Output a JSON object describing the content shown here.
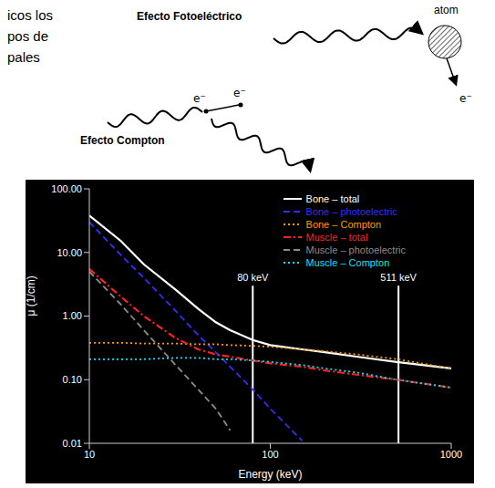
{
  "slide_text": [
    "icos los",
    "pos de",
    "pales"
  ],
  "diagram": {
    "photoelectric": {
      "title": "Efecto Fotoeléctrico",
      "atom": "atom",
      "electron": "e⁻"
    },
    "compton": {
      "title": "Efecto Compton",
      "electrons": [
        "e⁻",
        "e⁻"
      ]
    }
  },
  "chart_data": {
    "type": "line",
    "log": true,
    "grid": false,
    "legend": "top-right",
    "x_label": "Energy (keV)",
    "y_label": "μ (1/cm)",
    "xlim": [
      10,
      1000
    ],
    "xticks": [
      10,
      100,
      1000
    ],
    "ylim": [
      0.01,
      100
    ],
    "yticks": [
      0.01,
      {
        "value": 0.1,
        "label": "0.10"
      },
      {
        "value": 1,
        "label": "1.00"
      },
      {
        "value": 10,
        "label": "10.00"
      },
      {
        "value": 100,
        "label": "100.00"
      }
    ],
    "x": [
      10,
      15,
      20,
      30,
      40,
      50,
      60,
      80,
      100,
      150,
      200,
      300,
      500,
      1000
    ],
    "series": [
      {
        "name": "Bone – total",
        "color": "#ffffff",
        "line_style": "solid",
        "values": [
          38,
          15,
          6.5,
          2.6,
          1.3,
          0.8,
          0.6,
          0.42,
          0.35,
          0.3,
          0.27,
          0.23,
          0.19,
          0.15
        ]
      },
      {
        "name": "Bone – photoelectric",
        "color": "#2f2fff",
        "line_style": "dashed",
        "values": [
          30,
          9,
          4,
          1.2,
          0.5,
          0.27,
          0.16,
          0.07,
          0.035,
          0.011,
          null,
          null,
          null,
          null
        ]
      },
      {
        "name": "Bone – Compton",
        "color": "#ff9900",
        "line_style": "dotted",
        "values": [
          0.38,
          0.38,
          0.37,
          0.37,
          0.36,
          0.36,
          0.35,
          0.34,
          0.33,
          0.3,
          0.28,
          0.25,
          0.21,
          0.15
        ]
      },
      {
        "name": "Muscle – total",
        "color": "#ff2020",
        "line_style": "dashdot",
        "values": [
          5.5,
          2,
          1,
          0.45,
          0.3,
          0.25,
          0.23,
          0.2,
          0.18,
          0.16,
          0.14,
          0.12,
          0.1,
          0.075
        ]
      },
      {
        "name": "Muscle – photoelectric",
        "color": "#8c8c8c",
        "line_style": "dashed",
        "values": [
          5,
          1.5,
          0.6,
          0.17,
          0.07,
          0.035,
          0.016,
          null,
          null,
          null,
          null,
          null,
          null,
          null
        ]
      },
      {
        "name": "Muscle – Compton",
        "color": "#00e5ff",
        "line_style": "dotted",
        "values": [
          0.21,
          0.21,
          0.21,
          0.22,
          0.22,
          0.21,
          0.21,
          0.2,
          0.19,
          0.17,
          0.15,
          0.13,
          0.1,
          0.075
        ]
      }
    ],
    "annotations": [
      {
        "x": 80,
        "y": 3,
        "label": "80 keV"
      },
      {
        "x": 511,
        "y": 3,
        "label": "511 keV"
      }
    ]
  }
}
